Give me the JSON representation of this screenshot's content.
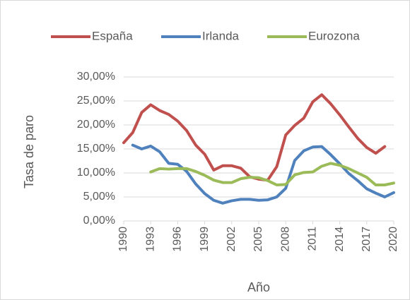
{
  "chart_data": {
    "type": "line",
    "y_label": "Tasa de paro",
    "x_label": "Año",
    "x": [
      1990,
      1991,
      1992,
      1993,
      1994,
      1995,
      1996,
      1997,
      1998,
      1999,
      2000,
      2001,
      2002,
      2003,
      2004,
      2005,
      2006,
      2007,
      2008,
      2009,
      2010,
      2011,
      2012,
      2013,
      2014,
      2015,
      2016,
      2017,
      2018,
      2019,
      2020
    ],
    "xlim": [
      1990,
      2020
    ],
    "xticks": [
      1990,
      1993,
      1996,
      1999,
      2002,
      2005,
      2008,
      2011,
      2014,
      2017,
      2020
    ],
    "ylim": [
      0,
      30
    ],
    "yticks": [
      {
        "value": 0,
        "label": "0,00%"
      },
      {
        "value": 5,
        "label": "5,00%"
      },
      {
        "value": 10,
        "label": "10,00%"
      },
      {
        "value": 15,
        "label": "15,00%"
      },
      {
        "value": 20,
        "label": "20,00%"
      },
      {
        "value": 25,
        "label": "25,00%"
      },
      {
        "value": 30,
        "label": "30,00%"
      }
    ],
    "grid": true,
    "legend": "top",
    "series": [
      {
        "name": "España",
        "color": "#c0504d",
        "values": [
          16.3,
          18.4,
          22.6,
          24.2,
          23.0,
          22.2,
          20.8,
          18.8,
          15.8,
          13.9,
          10.6,
          11.5,
          11.5,
          11.0,
          9.2,
          8.7,
          8.5,
          11.3,
          17.9,
          19.9,
          21.4,
          24.8,
          26.3,
          24.4,
          22.1,
          19.6,
          17.2,
          15.3,
          14.1,
          15.5,
          null
        ]
      },
      {
        "name": "Irlanda",
        "color": "#4f81bd",
        "values": [
          null,
          15.8,
          15.0,
          15.6,
          14.4,
          12.0,
          11.8,
          10.3,
          7.7,
          5.7,
          4.3,
          3.7,
          4.2,
          4.5,
          4.5,
          4.3,
          4.4,
          5.0,
          6.8,
          12.6,
          14.6,
          15.4,
          15.5,
          13.8,
          11.9,
          9.9,
          8.4,
          6.7,
          5.8,
          5.0,
          5.9
        ]
      },
      {
        "name": "Eurozona",
        "color": "#9bbb59",
        "values": [
          null,
          null,
          null,
          10.2,
          10.9,
          10.8,
          10.9,
          10.9,
          10.3,
          9.5,
          8.5,
          8.0,
          8.0,
          8.8,
          9.1,
          9.0,
          8.4,
          7.5,
          7.6,
          9.6,
          10.1,
          10.2,
          11.4,
          12.0,
          11.6,
          10.9,
          10.0,
          9.1,
          7.5,
          7.5,
          7.9
        ]
      }
    ]
  }
}
